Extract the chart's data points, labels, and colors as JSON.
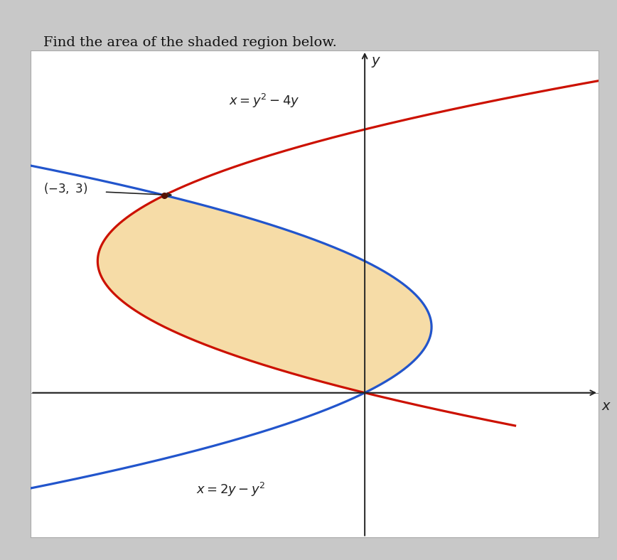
{
  "title": "Find the area of the shaded region below.",
  "curve1_label": "x = y^2 - 4y",
  "curve2_label": "x = 2y - y^2",
  "intersection1": [
    -3,
    3
  ],
  "intersection2": [
    0,
    0
  ],
  "shaded_color": "#F0C060",
  "shaded_alpha": 0.55,
  "curve1_color": "#CC1100",
  "curve2_color": "#2255CC",
  "curve_linewidth": 2.3,
  "axis_color": "#222222",
  "background_outer": "#C8C8C8",
  "background_inner": "#FFFFFF",
  "point_color": "#551100",
  "xlim": [
    -5.0,
    3.5
  ],
  "ylim": [
    -2.2,
    5.2
  ],
  "x_axis_label": "x",
  "y_axis_label": "y",
  "origin_x": 0,
  "origin_y": 0
}
